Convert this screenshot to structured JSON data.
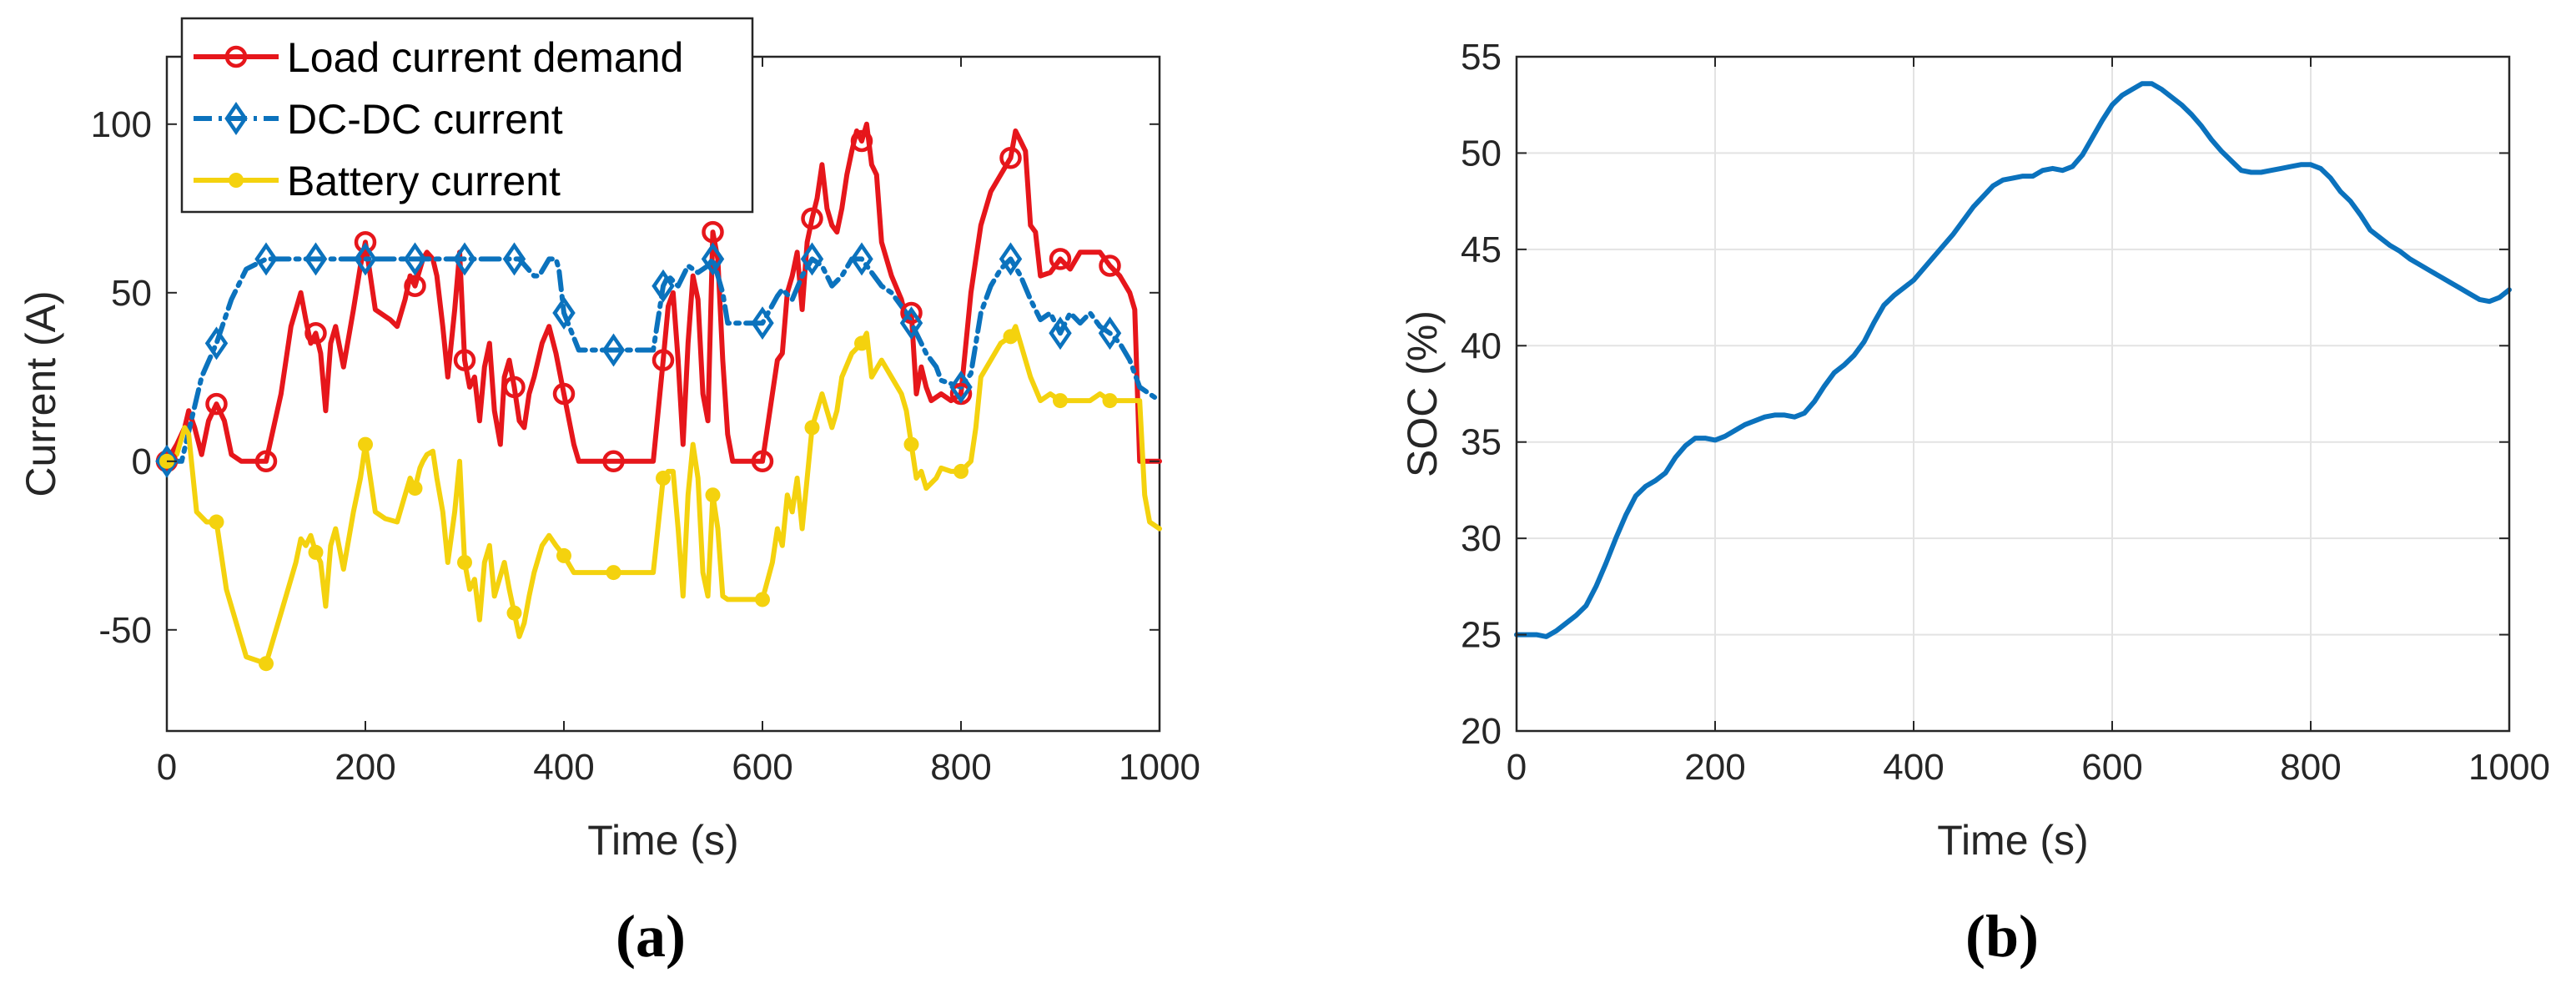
{
  "charts": [
    {
      "panel_label": "(a)",
      "xlabel": "Time (s)",
      "ylabel": "Current (A)",
      "xlim": [
        0,
        1000
      ],
      "ylim": [
        -80,
        120
      ],
      "xticks": [
        0,
        200,
        400,
        600,
        800,
        1000
      ],
      "yticks": [
        -50,
        0,
        50,
        100
      ],
      "grid": false,
      "legend_position": "top-left",
      "legend": [
        "Load current demand",
        "DC-DC current",
        "Battery current"
      ]
    },
    {
      "panel_label": "(b)",
      "xlabel": "Time (s)",
      "ylabel": "SOC (%)",
      "xlim": [
        0,
        1000
      ],
      "ylim": [
        20,
        55
      ],
      "xticks": [
        0,
        200,
        400,
        600,
        800,
        1000
      ],
      "yticks": [
        20,
        25,
        30,
        35,
        40,
        45,
        50,
        55
      ],
      "grid": true
    }
  ],
  "chart_data": [
    {
      "type": "line",
      "xlabel": "Time (s)",
      "ylabel": "Current (A)",
      "xlim": [
        0,
        1000
      ],
      "ylim": [
        -80,
        120
      ],
      "legend_position": "top-left",
      "series": [
        {
          "name": "Load current demand",
          "color": "#e6161b",
          "marker": "circle",
          "x": [
            0,
            10,
            18,
            22,
            28,
            35,
            42,
            50,
            58,
            65,
            75,
            100,
            115,
            125,
            135,
            140,
            145,
            150,
            155,
            160,
            165,
            170,
            178,
            188,
            195,
            200,
            210,
            220,
            225,
            232,
            240,
            245,
            250,
            255,
            258,
            262,
            268,
            272,
            278,
            283,
            290,
            295,
            300,
            305,
            310,
            315,
            320,
            325,
            330,
            336,
            340,
            345,
            350,
            355,
            360,
            365,
            370,
            378,
            385,
            392,
            400,
            410,
            415,
            420,
            430,
            450,
            480,
            490,
            500,
            505,
            510,
            515,
            520,
            525,
            530,
            535,
            540,
            545,
            550,
            555,
            560,
            565,
            570,
            580,
            600,
            610,
            615,
            620,
            625,
            630,
            635,
            640,
            645,
            650,
            655,
            660,
            665,
            670,
            675,
            680,
            685,
            690,
            695,
            700,
            705,
            710,
            715,
            720,
            730,
            740,
            745,
            750,
            755,
            760,
            765,
            770,
            780,
            790,
            800,
            810,
            815,
            820,
            830,
            840,
            850,
            855,
            860,
            865,
            870,
            875,
            880,
            890,
            900,
            910,
            920,
            930,
            940,
            950,
            960,
            970,
            975,
            980,
            985,
            990,
            1000
          ],
          "y": [
            0,
            5,
            10,
            15,
            10,
            2,
            12,
            17,
            12,
            2,
            0,
            0,
            20,
            40,
            50,
            42,
            35,
            38,
            32,
            15,
            35,
            40,
            28,
            45,
            58,
            65,
            45,
            43,
            42,
            40,
            48,
            55,
            52,
            57,
            60,
            62,
            60,
            55,
            40,
            25,
            45,
            62,
            30,
            22,
            25,
            12,
            28,
            35,
            15,
            5,
            25,
            30,
            22,
            12,
            10,
            20,
            25,
            35,
            40,
            32,
            20,
            5,
            0,
            0,
            0,
            0,
            0,
            0,
            30,
            46,
            50,
            30,
            5,
            35,
            55,
            48,
            20,
            12,
            68,
            60,
            30,
            8,
            0,
            0,
            0,
            20,
            30,
            32,
            50,
            55,
            62,
            45,
            65,
            72,
            78,
            88,
            75,
            70,
            68,
            75,
            85,
            92,
            98,
            95,
            100,
            88,
            85,
            65,
            55,
            48,
            42,
            44,
            20,
            28,
            22,
            18,
            20,
            18,
            20,
            50,
            60,
            70,
            80,
            85,
            90,
            98,
            95,
            92,
            70,
            68,
            55,
            56,
            60,
            57,
            62,
            62,
            62,
            58,
            55,
            50,
            45,
            0,
            0,
            0,
            0
          ]
        },
        {
          "name": "DC-DC current",
          "color": "#0b72bd",
          "marker": "diamond",
          "x": [
            0,
            15,
            35,
            50,
            65,
            80,
            100,
            150,
            200,
            250,
            300,
            355,
            370,
            375,
            385,
            392,
            395,
            400,
            415,
            450,
            480,
            490,
            500,
            505,
            515,
            525,
            535,
            545,
            550,
            555,
            560,
            565,
            570,
            580,
            600,
            615,
            620,
            630,
            640,
            650,
            660,
            670,
            680,
            690,
            700,
            710,
            720,
            730,
            745,
            755,
            765,
            775,
            780,
            800,
            810,
            820,
            830,
            840,
            850,
            860,
            870,
            880,
            890,
            900,
            910,
            920,
            930,
            940,
            950,
            960,
            970,
            980,
            1000
          ],
          "y": [
            0,
            0,
            25,
            35,
            48,
            57,
            60,
            60,
            60,
            60,
            60,
            60,
            55,
            55,
            60,
            60,
            57,
            44,
            33,
            33,
            33,
            33,
            52,
            55,
            52,
            58,
            56,
            58,
            60,
            55,
            50,
            41,
            41,
            41,
            41,
            49,
            51,
            48,
            55,
            60,
            58,
            52,
            55,
            60,
            60,
            56,
            52,
            50,
            44,
            38,
            32,
            28,
            24,
            22,
            26,
            44,
            52,
            57,
            60,
            55,
            48,
            42,
            44,
            38,
            44,
            41,
            44,
            40,
            38,
            35,
            30,
            22,
            18
          ]
        },
        {
          "name": "Battery current",
          "color": "#f4d20e",
          "marker": "dot",
          "x": [
            0,
            10,
            18,
            22,
            30,
            40,
            50,
            60,
            80,
            100,
            115,
            130,
            135,
            140,
            145,
            150,
            155,
            160,
            165,
            170,
            178,
            188,
            195,
            200,
            210,
            220,
            232,
            240,
            245,
            250,
            255,
            258,
            262,
            268,
            272,
            278,
            283,
            290,
            295,
            300,
            305,
            310,
            315,
            320,
            325,
            330,
            340,
            345,
            350,
            355,
            360,
            365,
            370,
            378,
            385,
            392,
            400,
            410,
            415,
            420,
            440,
            450,
            480,
            490,
            500,
            505,
            510,
            515,
            520,
            525,
            530,
            535,
            540,
            545,
            550,
            555,
            560,
            565,
            570,
            580,
            600,
            610,
            615,
            620,
            625,
            630,
            635,
            640,
            645,
            650,
            660,
            670,
            675,
            680,
            690,
            700,
            705,
            710,
            720,
            730,
            740,
            745,
            750,
            755,
            760,
            765,
            775,
            780,
            790,
            800,
            810,
            815,
            820,
            830,
            840,
            850,
            855,
            860,
            870,
            880,
            890,
            900,
            910,
            920,
            930,
            940,
            950,
            960,
            970,
            980,
            985,
            990,
            1000
          ],
          "y": [
            0,
            2,
            10,
            8,
            -15,
            -18,
            -18,
            -38,
            -58,
            -60,
            -45,
            -30,
            -23,
            -25,
            -22,
            -27,
            -30,
            -43,
            -25,
            -20,
            -32,
            -15,
            -5,
            5,
            -15,
            -17,
            -18,
            -10,
            -5,
            -8,
            -2,
            0,
            2,
            3,
            -5,
            -15,
            -30,
            -15,
            0,
            -30,
            -38,
            -35,
            -47,
            -30,
            -25,
            -40,
            -30,
            -38,
            -45,
            -52,
            -48,
            -40,
            -33,
            -25,
            -22,
            -25,
            -28,
            -33,
            -33,
            -33,
            -33,
            -33,
            -33,
            -33,
            -5,
            -3,
            -3,
            -20,
            -40,
            -10,
            5,
            -5,
            -33,
            -40,
            -10,
            -20,
            -40,
            -41,
            -41,
            -41,
            -41,
            -30,
            -20,
            -25,
            -10,
            -15,
            -5,
            -20,
            -5,
            10,
            20,
            10,
            15,
            25,
            32,
            35,
            38,
            25,
            30,
            25,
            20,
            15,
            5,
            -5,
            -3,
            -8,
            -5,
            -2,
            -3,
            -3,
            0,
            10,
            25,
            30,
            35,
            37,
            40,
            35,
            25,
            18,
            20,
            18,
            18,
            18,
            18,
            20,
            18,
            18,
            18,
            18,
            -10,
            -18,
            -20
          ]
        }
      ]
    },
    {
      "type": "line",
      "xlabel": "Time (s)",
      "ylabel": "SOC (%)",
      "xlim": [
        0,
        1000
      ],
      "ylim": [
        20,
        55
      ],
      "grid": true,
      "series": [
        {
          "color": "#0b72bd",
          "x": [
            0,
            10,
            20,
            30,
            40,
            50,
            60,
            70,
            80,
            90,
            100,
            110,
            120,
            130,
            140,
            150,
            160,
            170,
            180,
            190,
            200,
            210,
            220,
            230,
            240,
            250,
            260,
            270,
            280,
            290,
            300,
            310,
            320,
            330,
            340,
            350,
            360,
            370,
            380,
            390,
            400,
            420,
            440,
            460,
            480,
            490,
            500,
            510,
            520,
            530,
            540,
            550,
            560,
            570,
            580,
            590,
            600,
            610,
            620,
            630,
            640,
            650,
            660,
            670,
            680,
            690,
            700,
            710,
            720,
            730,
            740,
            750,
            760,
            770,
            780,
            790,
            800,
            810,
            820,
            830,
            840,
            850,
            860,
            870,
            880,
            890,
            900,
            910,
            920,
            930,
            940,
            950,
            960,
            970,
            980,
            990,
            1000
          ],
          "y": [
            25,
            25,
            25,
            24.9,
            25.2,
            25.6,
            26,
            26.5,
            27.5,
            28.7,
            30,
            31.2,
            32.2,
            32.7,
            33,
            33.4,
            34.2,
            34.8,
            35.2,
            35.2,
            35.1,
            35.3,
            35.6,
            35.9,
            36.1,
            36.3,
            36.4,
            36.4,
            36.3,
            36.5,
            37.1,
            37.9,
            38.6,
            39,
            39.5,
            40.2,
            41.2,
            42.1,
            42.6,
            43,
            43.4,
            44.6,
            45.8,
            47.2,
            48.3,
            48.6,
            48.7,
            48.8,
            48.8,
            49.1,
            49.2,
            49.1,
            49.3,
            49.9,
            50.8,
            51.7,
            52.5,
            53,
            53.3,
            53.6,
            53.6,
            53.3,
            52.9,
            52.5,
            52,
            51.4,
            50.7,
            50.1,
            49.6,
            49.1,
            49,
            49,
            49.1,
            49.2,
            49.3,
            49.4,
            49.4,
            49.2,
            48.7,
            48,
            47.5,
            46.8,
            46,
            45.6,
            45.2,
            44.9,
            44.5,
            44.2,
            43.9,
            43.6,
            43.3,
            43,
            42.7,
            42.4,
            42.3,
            42.5,
            42.9
          ]
        }
      ]
    }
  ]
}
